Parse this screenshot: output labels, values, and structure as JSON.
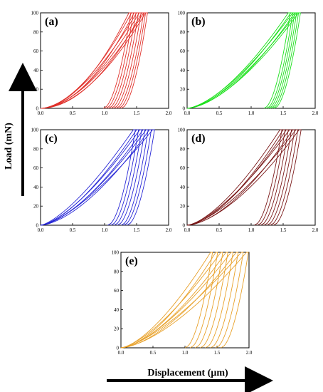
{
  "figure": {
    "xlabel": "Displacement (μm)",
    "ylabel": "Load (mN)"
  },
  "chart_data": [
    {
      "type": "line",
      "panel_label": "(a)",
      "color": "#e0312b",
      "xlim": [
        0,
        2.0
      ],
      "ylim": [
        0,
        100
      ],
      "xticks": [
        "0.0",
        "0.5",
        "1.0",
        "1.5",
        "2.0"
      ],
      "yticks": [
        "0",
        "20",
        "40",
        "60",
        "80",
        "100"
      ],
      "series": [
        {
          "max_displacement": 1.38,
          "unload_start": 0.98,
          "ypow": 1.85
        },
        {
          "max_displacement": 1.42,
          "unload_start": 1.02,
          "ypow": 1.75
        },
        {
          "max_displacement": 1.46,
          "unload_start": 1.06,
          "ypow": 1.9
        },
        {
          "max_displacement": 1.5,
          "unload_start": 1.1,
          "ypow": 1.7
        },
        {
          "max_displacement": 1.54,
          "unload_start": 1.14,
          "ypow": 1.8
        },
        {
          "max_displacement": 1.58,
          "unload_start": 1.18,
          "ypow": 1.95
        },
        {
          "max_displacement": 1.61,
          "unload_start": 1.22,
          "ypow": 1.75
        },
        {
          "max_displacement": 1.64,
          "unload_start": 1.26,
          "ypow": 1.85
        }
      ]
    },
    {
      "type": "line",
      "panel_label": "(b)",
      "color": "#19e019",
      "xlim": [
        0,
        2.0
      ],
      "ylim": [
        0,
        100
      ],
      "xticks": [
        "0.0",
        "0.5",
        "1.0",
        "1.5",
        "2.0"
      ],
      "yticks": [
        "0",
        "20",
        "40",
        "60",
        "80",
        "100"
      ],
      "series": [
        {
          "max_displacement": 1.58,
          "unload_start": 1.2,
          "ypow": 1.55
        },
        {
          "max_displacement": 1.62,
          "unload_start": 1.24,
          "ypow": 1.6
        },
        {
          "max_displacement": 1.65,
          "unload_start": 1.27,
          "ypow": 1.5
        },
        {
          "max_displacement": 1.68,
          "unload_start": 1.3,
          "ypow": 1.65
        },
        {
          "max_displacement": 1.71,
          "unload_start": 1.33,
          "ypow": 1.55
        },
        {
          "max_displacement": 1.74,
          "unload_start": 1.36,
          "ypow": 1.6
        }
      ]
    },
    {
      "type": "line",
      "panel_label": "(c)",
      "color": "#2626d6",
      "xlim": [
        0,
        2.0
      ],
      "ylim": [
        0,
        100
      ],
      "xticks": [
        "0.0",
        "0.5",
        "1.0",
        "1.5",
        "2.0"
      ],
      "yticks": [
        "0",
        "20",
        "40",
        "60",
        "80",
        "100"
      ],
      "series": [
        {
          "max_displacement": 1.45,
          "unload_start": 1.05,
          "ypow": 1.4
        },
        {
          "max_displacement": 1.5,
          "unload_start": 1.1,
          "ypow": 1.5
        },
        {
          "max_displacement": 1.55,
          "unload_start": 1.15,
          "ypow": 1.45
        },
        {
          "max_displacement": 1.6,
          "unload_start": 1.2,
          "ypow": 1.55
        },
        {
          "max_displacement": 1.65,
          "unload_start": 1.26,
          "ypow": 1.5
        },
        {
          "max_displacement": 1.7,
          "unload_start": 1.3,
          "ypow": 1.6
        },
        {
          "max_displacement": 1.75,
          "unload_start": 1.35,
          "ypow": 1.45
        }
      ]
    },
    {
      "type": "line",
      "panel_label": "(d)",
      "color": "#7a1818",
      "xlim": [
        0,
        2.0
      ],
      "ylim": [
        0,
        100
      ],
      "xticks": [
        "0.0",
        "0.5",
        "1.0",
        "1.5",
        "2.0"
      ],
      "yticks": [
        "0",
        "20",
        "40",
        "60",
        "80",
        "100"
      ],
      "series": [
        {
          "max_displacement": 1.45,
          "unload_start": 1.05,
          "ypow": 1.5
        },
        {
          "max_displacement": 1.5,
          "unload_start": 1.1,
          "ypow": 1.6
        },
        {
          "max_displacement": 1.55,
          "unload_start": 1.15,
          "ypow": 1.55
        },
        {
          "max_displacement": 1.6,
          "unload_start": 1.2,
          "ypow": 1.45
        },
        {
          "max_displacement": 1.65,
          "unload_start": 1.25,
          "ypow": 1.65
        },
        {
          "max_displacement": 1.7,
          "unload_start": 1.3,
          "ypow": 1.5
        },
        {
          "max_displacement": 1.75,
          "unload_start": 1.35,
          "ypow": 1.6
        }
      ]
    },
    {
      "type": "line",
      "panel_label": "(e)",
      "color": "#e8a12a",
      "xlim": [
        0,
        2.0
      ],
      "ylim": [
        0,
        100
      ],
      "xticks": [
        "0.0",
        "0.5",
        "1.0",
        "1.5",
        "2.0"
      ],
      "yticks": [
        "0",
        "20",
        "40",
        "60",
        "80",
        "100"
      ],
      "series": [
        {
          "max_displacement": 1.4,
          "unload_start": 1.0,
          "ypow": 1.5
        },
        {
          "max_displacement": 1.48,
          "unload_start": 1.08,
          "ypow": 1.6
        },
        {
          "max_displacement": 1.56,
          "unload_start": 1.16,
          "ypow": 1.45
        },
        {
          "max_displacement": 1.64,
          "unload_start": 1.24,
          "ypow": 1.55
        },
        {
          "max_displacement": 1.72,
          "unload_start": 1.32,
          "ypow": 1.5
        },
        {
          "max_displacement": 1.8,
          "unload_start": 1.4,
          "ypow": 1.6
        },
        {
          "max_displacement": 1.88,
          "unload_start": 1.48,
          "ypow": 1.45
        },
        {
          "max_displacement": 1.96,
          "unload_start": 1.56,
          "ypow": 1.55
        }
      ]
    }
  ]
}
